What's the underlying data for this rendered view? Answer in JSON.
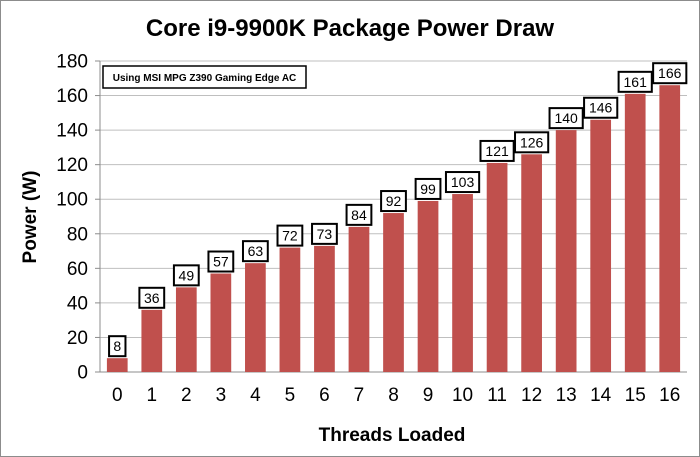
{
  "chart_data": {
    "type": "bar",
    "title": "Core i9-9900K Package Power Draw",
    "xlabel": "Threads Loaded",
    "ylabel": "Power (W)",
    "categories": [
      "0",
      "1",
      "2",
      "3",
      "4",
      "5",
      "6",
      "7",
      "8",
      "9",
      "10",
      "11",
      "12",
      "13",
      "14",
      "15",
      "16"
    ],
    "values": [
      8,
      36,
      49,
      57,
      63,
      72,
      73,
      84,
      92,
      99,
      103,
      121,
      126,
      140,
      146,
      161,
      166
    ],
    "ylim": [
      0,
      180
    ],
    "yticks": [
      "0",
      "20",
      "40",
      "60",
      "80",
      "100",
      "120",
      "140",
      "160",
      "180"
    ],
    "grid": true,
    "annotation": "Using MSI MPG Z390 Gaming Edge AC",
    "bar_color": "#c0504d",
    "grid_color": "#bfbfbf"
  }
}
